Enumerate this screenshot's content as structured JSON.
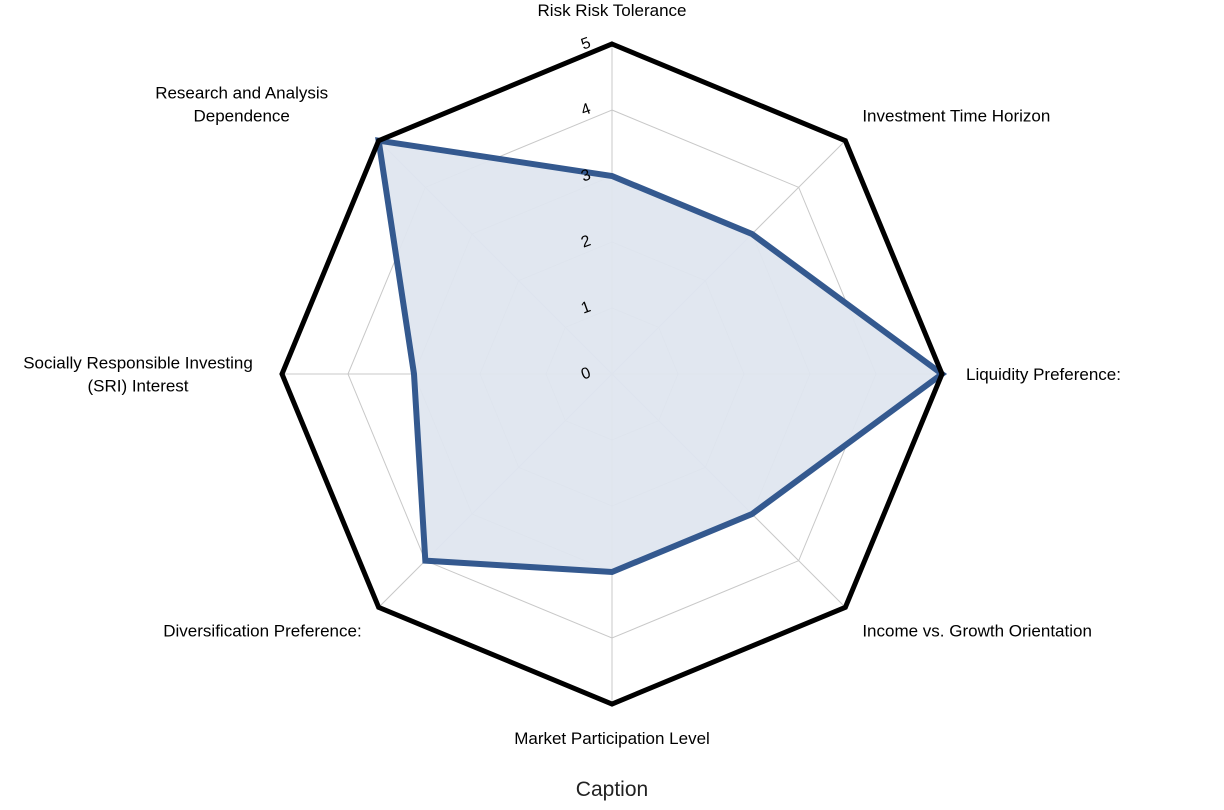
{
  "chart_data": {
    "type": "radar",
    "axes": [
      "Risk Risk Tolerance",
      "Investment Time Horizon",
      "Liquidity Preference:",
      "Income vs. Growth Orientation",
      "Market Participation Level",
      "Diversification Preference:",
      "Socially Responsible Investing (SRI) Interest",
      "Research and Analysis Dependence"
    ],
    "axis_label_lines": [
      [
        "Risk Risk Tolerance"
      ],
      [
        "Investment Time Horizon"
      ],
      [
        "Liquidity Preference:"
      ],
      [
        "Income vs. Growth Orientation"
      ],
      [
        "Market Participation Level"
      ],
      [
        "Diversification Preference:"
      ],
      [
        "Socially Responsible Investing",
        "(SRI) Interest"
      ],
      [
        "Research and Analysis",
        "Dependence"
      ]
    ],
    "values": [
      3,
      3,
      5,
      3,
      3,
      4,
      3,
      5
    ],
    "range": [
      0,
      5
    ],
    "ticks": [
      0,
      1,
      2,
      3,
      4,
      5
    ],
    "grid": true,
    "caption": "Caption",
    "colors": {
      "series_line": "#34598f",
      "series_fill": "#dfe6ef",
      "outer_frame": "#000000",
      "grid": "#c8c8c8"
    }
  }
}
